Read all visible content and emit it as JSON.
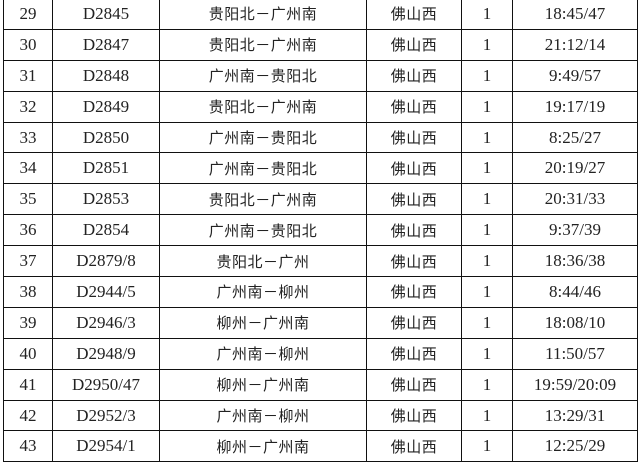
{
  "rows": [
    {
      "no": "29",
      "train": "D2845",
      "route": "贵阳北－广州南",
      "station": "佛山西",
      "count": "1",
      "time": "18:45/47"
    },
    {
      "no": "30",
      "train": "D2847",
      "route": "贵阳北－广州南",
      "station": "佛山西",
      "count": "1",
      "time": "21:12/14"
    },
    {
      "no": "31",
      "train": "D2848",
      "route": "广州南－贵阳北",
      "station": "佛山西",
      "count": "1",
      "time": "9:49/57"
    },
    {
      "no": "32",
      "train": "D2849",
      "route": "贵阳北－广州南",
      "station": "佛山西",
      "count": "1",
      "time": "19:17/19"
    },
    {
      "no": "33",
      "train": "D2850",
      "route": "广州南－贵阳北",
      "station": "佛山西",
      "count": "1",
      "time": "8:25/27"
    },
    {
      "no": "34",
      "train": "D2851",
      "route": "广州南－贵阳北",
      "station": "佛山西",
      "count": "1",
      "time": "20:19/27"
    },
    {
      "no": "35",
      "train": "D2853",
      "route": "贵阳北－广州南",
      "station": "佛山西",
      "count": "1",
      "time": "20:31/33"
    },
    {
      "no": "36",
      "train": "D2854",
      "route": "广州南－贵阳北",
      "station": "佛山西",
      "count": "1",
      "time": "9:37/39"
    },
    {
      "no": "37",
      "train": "D2879/8",
      "route": "贵阳北－广州",
      "station": "佛山西",
      "count": "1",
      "time": "18:36/38"
    },
    {
      "no": "38",
      "train": "D2944/5",
      "route": "广州南－柳州",
      "station": "佛山西",
      "count": "1",
      "time": "8:44/46"
    },
    {
      "no": "39",
      "train": "D2946/3",
      "route": "柳州－广州南",
      "station": "佛山西",
      "count": "1",
      "time": "18:08/10"
    },
    {
      "no": "40",
      "train": "D2948/9",
      "route": "广州南－柳州",
      "station": "佛山西",
      "count": "1",
      "time": "11:50/57"
    },
    {
      "no": "41",
      "train": "D2950/47",
      "route": "柳州－广州南",
      "station": "佛山西",
      "count": "1",
      "time": "19:59/20:09"
    },
    {
      "no": "42",
      "train": "D2952/3",
      "route": "广州南－柳州",
      "station": "佛山西",
      "count": "1",
      "time": "13:29/31"
    },
    {
      "no": "43",
      "train": "D2954/1",
      "route": "柳州－广州南",
      "station": "佛山西",
      "count": "1",
      "time": "12:25/29"
    }
  ]
}
